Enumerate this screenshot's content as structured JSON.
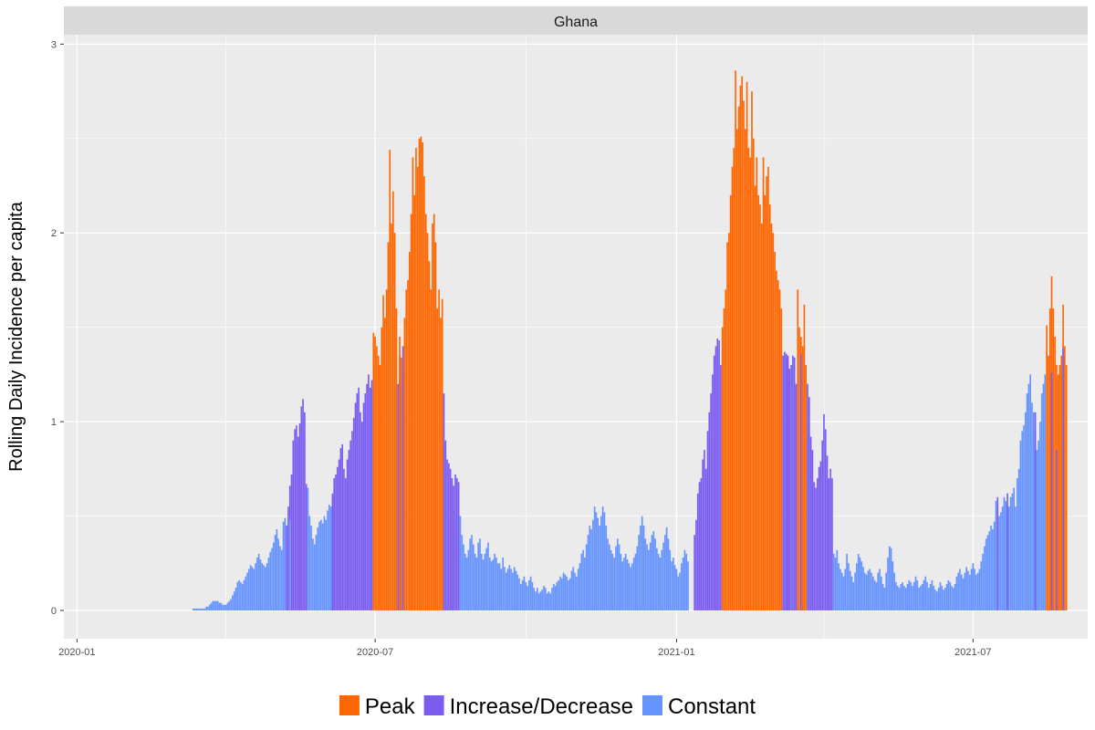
{
  "chart_data": {
    "type": "bar",
    "facet_title": "Ghana",
    "xlabel": "",
    "ylabel": "Rolling Daily Incidence per capita",
    "x_range": [
      "2019-12-24",
      "2021-09-09"
    ],
    "ylim": [
      -0.15,
      3.05
    ],
    "y_ticks": [
      0,
      1,
      2,
      3
    ],
    "x_ticks": [
      "2020-01",
      "2020-07",
      "2021-01",
      "2021-07"
    ],
    "x_tick_dates": [
      "2020-01-01",
      "2020-07-01",
      "2021-01-01",
      "2021-07-01"
    ],
    "grid": true,
    "legend_position": "bottom",
    "legend": [
      {
        "name": "Peak",
        "color": "#ff6600"
      },
      {
        "name": "Increase/Decrease",
        "color": "#7a5cf0"
      },
      {
        "name": "Constant",
        "color": "#6694ff"
      }
    ],
    "colors": {
      "Peak": "#ff6600",
      "Increase/Decrease": "#7a5cf0",
      "Constant": "#6694ff"
    },
    "segments": [
      {
        "start": "2020-03-12",
        "end": "2020-05-07",
        "category": "Constant",
        "values": [
          0.01,
          0.01,
          0.01,
          0.01,
          0.01,
          0.01,
          0.01,
          0.01,
          0.02,
          0.02,
          0.03,
          0.04,
          0.05,
          0.05,
          0.05,
          0.05,
          0.04,
          0.04,
          0.03,
          0.03,
          0.03,
          0.04,
          0.05,
          0.06,
          0.08,
          0.1,
          0.12,
          0.15,
          0.16,
          0.15,
          0.14,
          0.16,
          0.18,
          0.2,
          0.22,
          0.24,
          0.23,
          0.22,
          0.25,
          0.28,
          0.3,
          0.27,
          0.25,
          0.24,
          0.23,
          0.25,
          0.28,
          0.31,
          0.33,
          0.36,
          0.4,
          0.43,
          0.38,
          0.34,
          0.32,
          0.47,
          0.49
        ]
      },
      {
        "start": "2020-05-08",
        "end": "2020-05-20",
        "category": "Increase/Decrease",
        "values": [
          0.45,
          0.55,
          0.66,
          0.72,
          0.9,
          0.96,
          0.98,
          0.92,
          0.99,
          1.08,
          1.12,
          1.05,
          0.67
        ]
      },
      {
        "start": "2020-05-21",
        "end": "2020-06-04",
        "category": "Constant",
        "values": [
          0.65,
          0.5,
          0.45,
          0.38,
          0.35,
          0.4,
          0.44,
          0.47,
          0.48,
          0.46,
          0.5,
          0.48,
          0.53,
          0.56,
          0.55
        ]
      },
      {
        "start": "2020-06-05",
        "end": "2020-06-29",
        "category": "Increase/Decrease",
        "values": [
          0.6,
          0.7,
          0.72,
          0.76,
          0.8,
          0.86,
          0.88,
          0.75,
          0.7,
          0.8,
          0.85,
          0.9,
          0.95,
          1.02,
          1.1,
          1.15,
          1.18,
          1.05,
          1.0,
          1.1,
          1.15,
          1.2,
          1.25,
          1.18,
          1.22
        ]
      },
      {
        "start": "2020-06-30",
        "end": "2020-07-08",
        "category": "Peak",
        "values": [
          1.47,
          1.45,
          1.4,
          1.35,
          1.3,
          1.5,
          1.67,
          1.55,
          1.7
        ]
      },
      {
        "start": "2020-07-09",
        "end": "2020-07-14",
        "category": "Peak",
        "values": [
          1.95,
          2.44,
          2.05,
          2.22,
          2.0,
          1.6
        ]
      },
      {
        "start": "2020-07-15",
        "end": "2020-07-18",
        "category": "Increase/Decrease",
        "values": [
          1.2,
          1.35,
          1.25,
          1.4
        ]
      },
      {
        "start": "2020-07-19",
        "end": "2020-08-11",
        "category": "Peak",
        "values": [
          1.55,
          1.7,
          1.75,
          1.9,
          2.1,
          2.4,
          2.2,
          2.45,
          2.35,
          2.5,
          2.51,
          2.48,
          2.3,
          2.1,
          2.0,
          1.85,
          1.7,
          2.05,
          2.1,
          1.95,
          1.6,
          1.7,
          1.55,
          1.65
        ]
      },
      {
        "start": "2020-08-12",
        "end": "2020-08-21",
        "category": "Increase/Decrease",
        "values": [
          1.15,
          0.9,
          0.8,
          0.78,
          0.75,
          0.7,
          0.66,
          0.72,
          0.7,
          0.68
        ]
      },
      {
        "start": "2020-08-22",
        "end": "2021-01-11",
        "category": "Constant",
        "values": [
          0.5,
          0.4,
          0.35,
          0.3,
          0.28,
          0.32,
          0.38,
          0.4,
          0.35,
          0.3,
          0.28,
          0.36,
          0.38,
          0.3,
          0.27,
          0.3,
          0.33,
          0.36,
          0.28,
          0.26,
          0.27,
          0.3,
          0.28,
          0.25,
          0.25,
          0.22,
          0.28,
          0.23,
          0.2,
          0.22,
          0.24,
          0.22,
          0.2,
          0.23,
          0.21,
          0.19,
          0.17,
          0.14,
          0.16,
          0.18,
          0.15,
          0.13,
          0.16,
          0.18,
          0.15,
          0.12,
          0.1,
          0.12,
          0.09,
          0.1,
          0.11,
          0.13,
          0.12,
          0.09,
          0.1,
          0.09,
          0.12,
          0.14,
          0.13,
          0.15,
          0.16,
          0.18,
          0.17,
          0.2,
          0.19,
          0.18,
          0.16,
          0.17,
          0.21,
          0.23,
          0.2,
          0.18,
          0.22,
          0.25,
          0.3,
          0.32,
          0.28,
          0.35,
          0.4,
          0.45,
          0.43,
          0.48,
          0.55,
          0.52,
          0.49,
          0.45,
          0.5,
          0.55,
          0.52,
          0.45,
          0.38,
          0.35,
          0.32,
          0.3,
          0.28,
          0.34,
          0.38,
          0.35,
          0.3,
          0.26,
          0.28,
          0.3,
          0.27,
          0.25,
          0.23,
          0.25,
          0.28,
          0.3,
          0.34,
          0.4,
          0.45,
          0.5,
          0.45,
          0.38,
          0.35,
          0.32,
          0.36,
          0.4,
          0.42,
          0.38,
          0.33,
          0.3,
          0.28,
          0.32,
          0.36,
          0.4,
          0.44,
          0.38,
          0.32,
          0.26,
          0.28,
          0.24,
          0.22,
          0.18,
          0.2,
          0.25,
          0.28,
          0.32,
          0.3,
          0.26
        ]
      },
      {
        "start": "2021-01-12",
        "end": "2021-01-28",
        "category": "Increase/Decrease",
        "values": [
          0.4,
          0.48,
          0.62,
          0.68,
          0.7,
          0.8,
          0.85,
          0.75,
          0.95,
          1.05,
          1.15,
          1.25,
          1.35,
          1.4,
          1.44,
          1.43,
          1.3
        ]
      },
      {
        "start": "2021-01-29",
        "end": "2021-03-06",
        "category": "Peak",
        "values": [
          1.5,
          1.6,
          1.7,
          1.95,
          2.0,
          2.2,
          2.35,
          2.45,
          2.86,
          2.55,
          2.67,
          2.78,
          2.83,
          2.7,
          2.55,
          2.8,
          2.45,
          2.4,
          2.75,
          2.5,
          2.25,
          2.4,
          2.2,
          2.15,
          2.05,
          2.4,
          2.2,
          2.3,
          2.35,
          2.15,
          2.05,
          2.0,
          1.9,
          1.8,
          1.75,
          1.7,
          1.6
        ]
      },
      {
        "start": "2021-03-07",
        "end": "2021-03-15",
        "category": "Increase/Decrease",
        "values": [
          1.35,
          1.37,
          1.36,
          1.33,
          1.28,
          1.3,
          1.35,
          1.34,
          1.2
        ]
      },
      {
        "start": "2021-03-16",
        "end": "2021-03-21",
        "category": "Peak",
        "values": [
          1.7,
          1.5,
          1.45,
          1.4,
          1.62,
          1.3
        ]
      },
      {
        "start": "2021-03-22",
        "end": "2021-04-06",
        "category": "Increase/Decrease",
        "values": [
          1.2,
          1.13,
          0.92,
          0.85,
          0.68,
          0.65,
          0.7,
          0.76,
          0.79,
          0.9,
          1.04,
          0.96,
          0.82,
          0.7,
          0.75,
          0.7
        ]
      },
      {
        "start": "2021-04-07",
        "end": "2021-07-06",
        "category": "Constant",
        "values": [
          0.3,
          0.28,
          0.32,
          0.25,
          0.22,
          0.2,
          0.18,
          0.22,
          0.3,
          0.25,
          0.21,
          0.18,
          0.15,
          0.2,
          0.25,
          0.3,
          0.28,
          0.26,
          0.23,
          0.2,
          0.19,
          0.21,
          0.22,
          0.2,
          0.18,
          0.16,
          0.15,
          0.2,
          0.22,
          0.18,
          0.14,
          0.12,
          0.2,
          0.28,
          0.34,
          0.33,
          0.26,
          0.2,
          0.15,
          0.13,
          0.12,
          0.14,
          0.15,
          0.13,
          0.12,
          0.14,
          0.16,
          0.15,
          0.13,
          0.15,
          0.18,
          0.16,
          0.12,
          0.13,
          0.14,
          0.16,
          0.18,
          0.15,
          0.12,
          0.14,
          0.16,
          0.13,
          0.11,
          0.1,
          0.12,
          0.15,
          0.13,
          0.11,
          0.12,
          0.14,
          0.16,
          0.15,
          0.13,
          0.12,
          0.14,
          0.18,
          0.2,
          0.22,
          0.19,
          0.17,
          0.2,
          0.23,
          0.21,
          0.19,
          0.22,
          0.25,
          0.22,
          0.19,
          0.2,
          0.22,
          0.26
        ]
      },
      {
        "start": "2021-07-07",
        "end": "2021-08-14",
        "category": "Constant",
        "values": [
          0.3,
          0.34,
          0.38,
          0.4,
          0.42,
          0.45,
          0.43,
          0.47,
          0.58,
          0.55,
          0.5,
          0.52,
          0.55,
          0.6,
          0.58,
          0.56,
          0.55,
          0.6,
          0.62,
          0.65,
          0.55,
          0.7,
          0.75,
          0.9,
          0.95,
          0.98,
          1.05,
          1.15,
          1.2,
          1.25,
          1.1,
          1.05,
          0.95,
          0.85,
          0.9,
          1.0,
          1.15,
          1.2,
          1.25
        ]
      },
      {
        "start": "2021-08-15",
        "end": "2021-08-27",
        "category": "Peak",
        "values": [
          1.51,
          1.35,
          1.6,
          1.77,
          1.6,
          1.45,
          1.3,
          1.25,
          1.3,
          1.35,
          1.62,
          1.4,
          1.3
        ]
      }
    ],
    "overlays": [
      {
        "date": "2020-05-10",
        "category": "Constant",
        "value": 0.48
      },
      {
        "date": "2020-06-05",
        "category": "Increase/Decrease",
        "value": 0.62
      },
      {
        "date": "2020-06-30",
        "category": "Peak",
        "value": 1.47
      },
      {
        "date": "2020-07-16",
        "category": "Peak",
        "value": 1.45
      },
      {
        "date": "2020-07-17",
        "category": "Peak",
        "value": 1.34
      },
      {
        "date": "2021-03-10",
        "category": "Increase/Decrease",
        "value": 1.35
      },
      {
        "date": "2021-03-18",
        "category": "Increase/Decrease",
        "value": 1.36
      },
      {
        "date": "2021-07-16",
        "category": "Increase/Decrease",
        "value": 0.6
      },
      {
        "date": "2021-07-22",
        "category": "Increase/Decrease",
        "value": 0.62
      },
      {
        "date": "2021-08-08",
        "category": "Increase/Decrease",
        "value": 1.05
      },
      {
        "date": "2021-08-18",
        "category": "Increase/Decrease",
        "value": 1.26
      },
      {
        "date": "2021-08-21",
        "category": "Increase/Decrease",
        "value": 0.85
      },
      {
        "date": "2021-08-25",
        "category": "Increase/Decrease",
        "value": 1.39
      }
    ]
  }
}
